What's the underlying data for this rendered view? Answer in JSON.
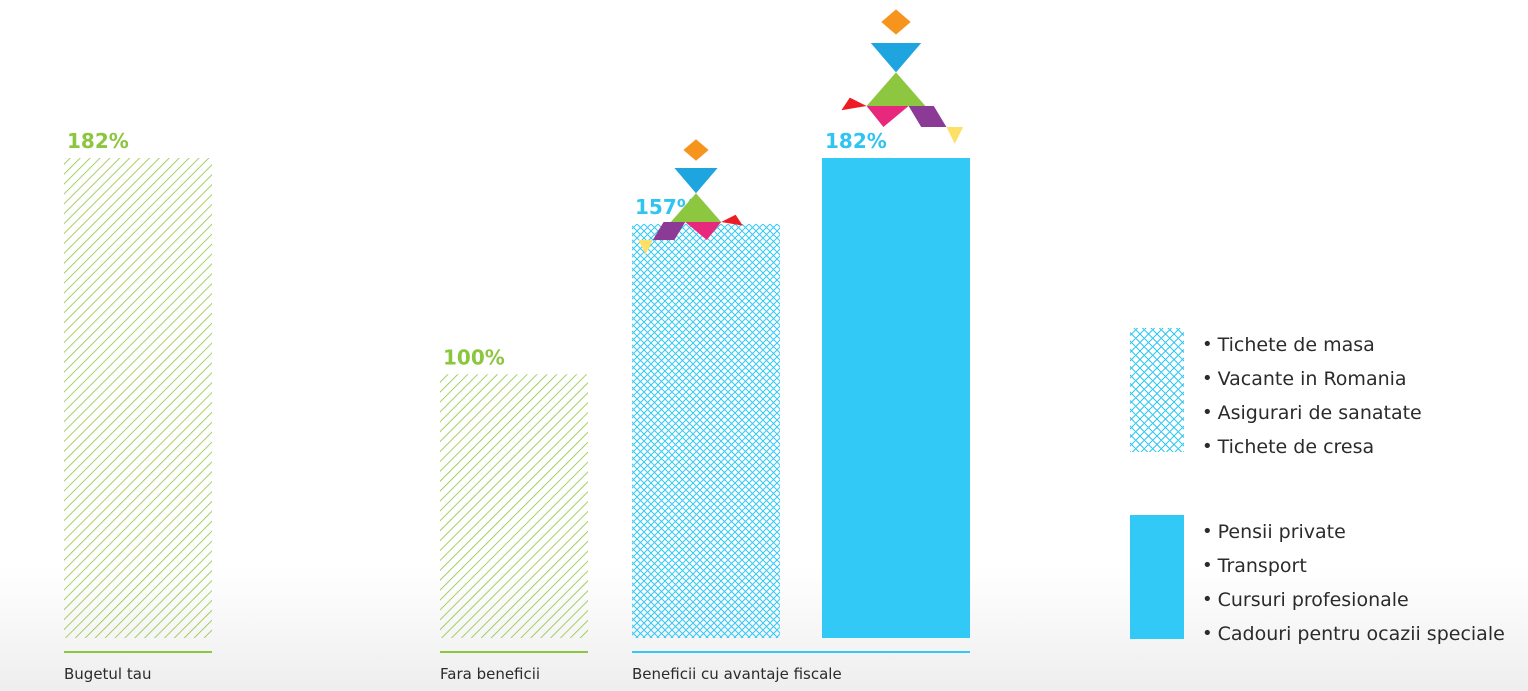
{
  "chart_data": {
    "type": "bar",
    "title": "",
    "xlabel": "",
    "ylabel": "",
    "ylim": [
      0,
      182
    ],
    "grid": false,
    "categories": [
      "Bugetul tau",
      "Fara beneficii",
      "Beneficii cu avantaje fiscale"
    ],
    "bars": [
      {
        "group": 0,
        "value": 182,
        "label": "182%",
        "fill": "green-hatch",
        "color": "#8dc63f"
      },
      {
        "group": 1,
        "value": 100,
        "label": "100%",
        "fill": "green-hatch",
        "color": "#8dc63f"
      },
      {
        "group": 2,
        "value": 157,
        "label": "157%",
        "fill": "blue-crosshatch",
        "color": "#33c9f7",
        "icon": "tangram-figure-icon"
      },
      {
        "group": 2,
        "value": 182,
        "label": "182%",
        "fill": "blue-solid",
        "color": "#33c9f7",
        "icon": "tangram-figure-icon"
      }
    ],
    "legend": {
      "placement": "right",
      "entries": [
        {
          "fill": "blue-crosshatch",
          "items": [
            "Tichete de masa",
            "Vacante in Romania",
            "Asigurari de sanatate",
            "Tichete de cresa"
          ]
        },
        {
          "fill": "blue-solid",
          "items": [
            "Pensii private",
            "Transport",
            "Cursuri profesionale",
            "Cadouri pentru ocazii speciale"
          ]
        }
      ]
    }
  },
  "colors": {
    "green": "#8dc63f",
    "green_label": "#8cc63e",
    "blue": "#33c9f7",
    "blue_label": "#30c4f3",
    "axis_text": "#2b2b2b"
  }
}
